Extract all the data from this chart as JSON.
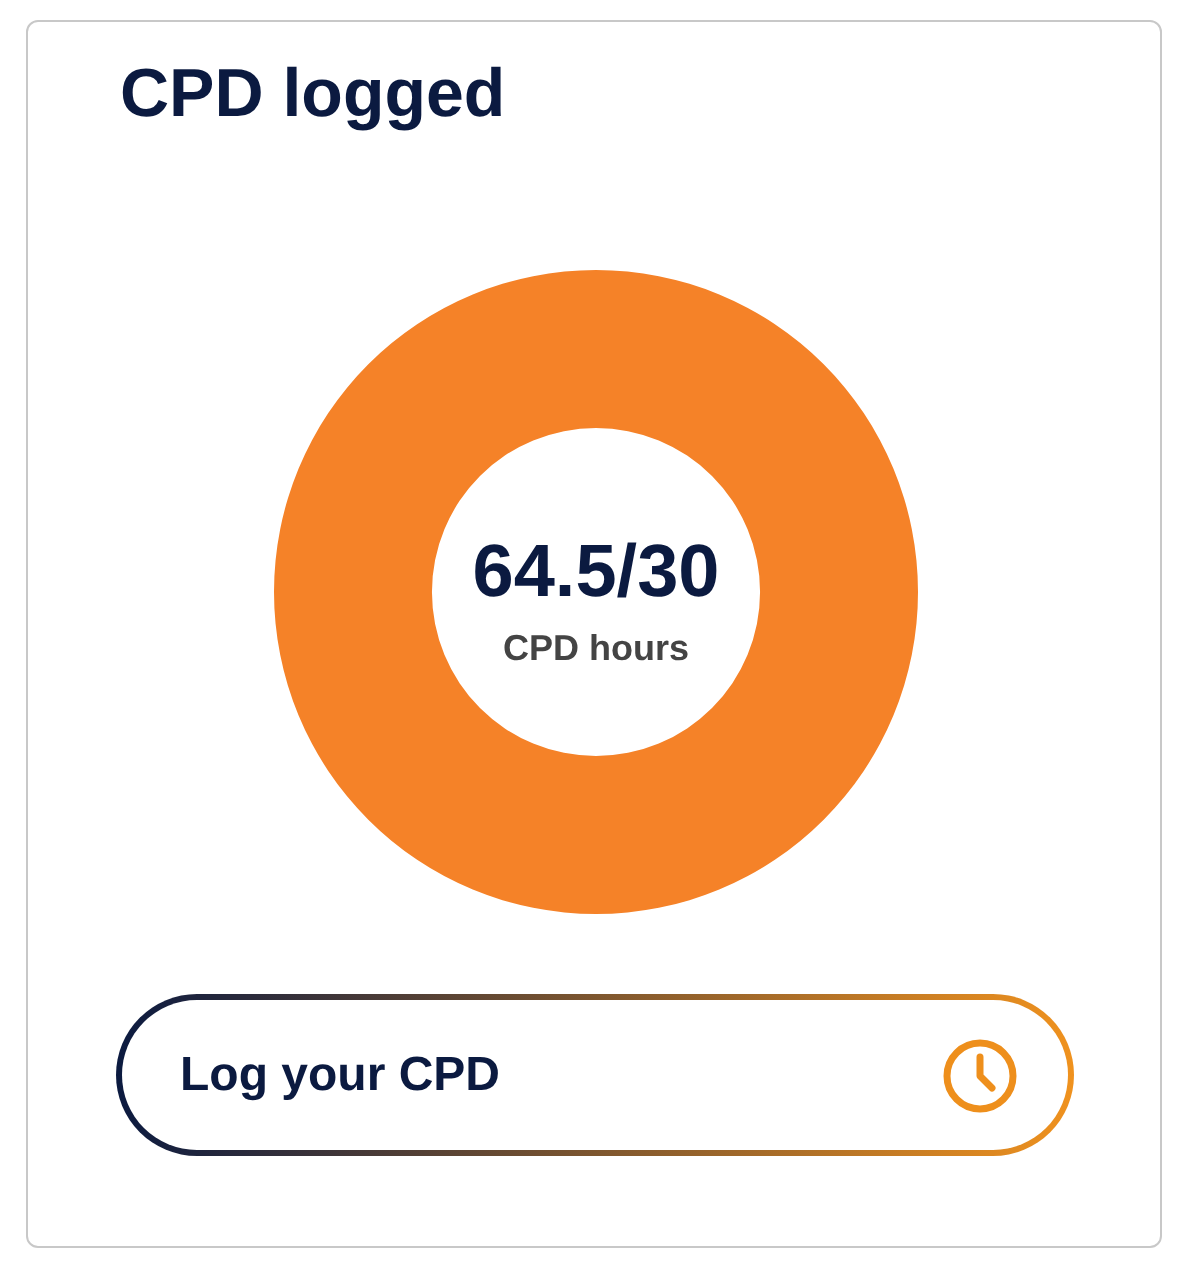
{
  "chart_data": {
    "type": "donut",
    "title": "CPD logged",
    "categories": [
      null
    ],
    "values": [
      100
    ],
    "colors": [
      "#f58228"
    ],
    "annotations": [
      "64.5/30",
      "CPD hours",
      "Log your CPD"
    ]
  }
}
